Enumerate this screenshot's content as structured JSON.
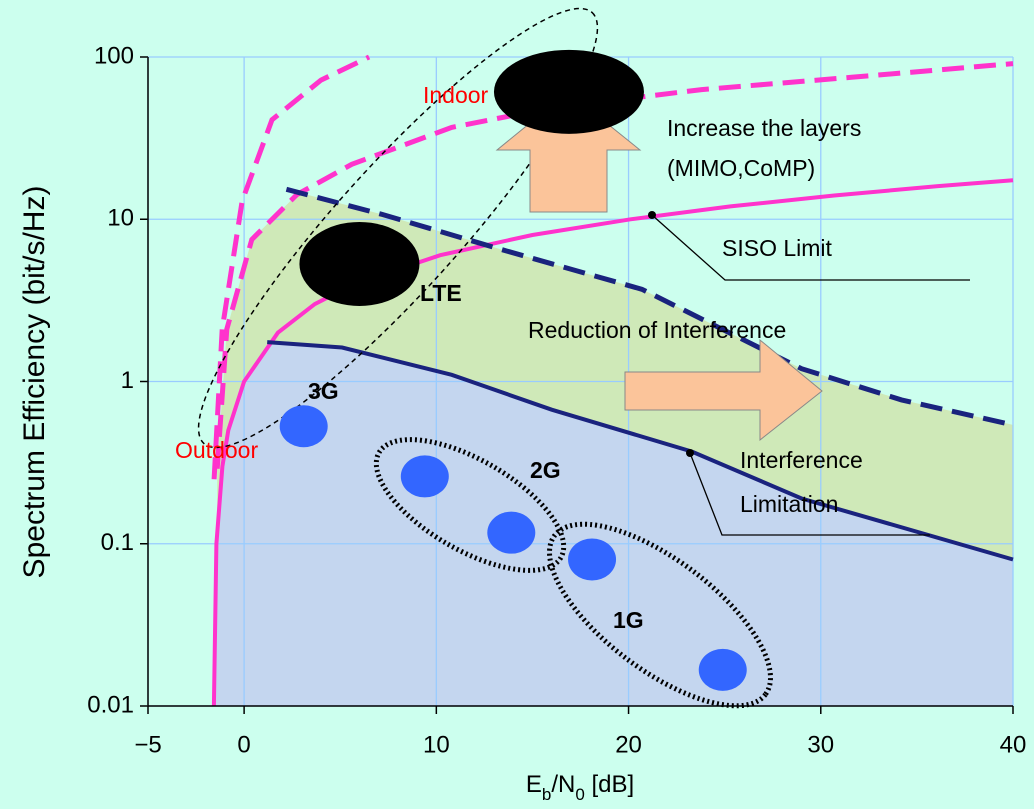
{
  "chart_data": {
    "type": "line",
    "ylabel": "Spectrum Efficiency (bit/s/Hz)",
    "xlabel_parts": [
      "E",
      "b",
      "/N",
      "0",
      " [dB]"
    ],
    "xlim": [
      -5,
      40
    ],
    "ylim": [
      0.01,
      100
    ],
    "log_y": true,
    "grid": true,
    "xticks": [
      {
        "value": -5,
        "label": "−5"
      },
      0,
      10,
      20,
      30,
      40
    ],
    "yticks": [
      0.01,
      0.1,
      1,
      10,
      100
    ],
    "series": [
      {
        "color": "#ff33cc",
        "style": "solid",
        "x": [
          -1.57,
          -1.44,
          -1.13,
          -0.82,
          0,
          1.76,
          3.68,
          5.74,
          10.2,
          15.0,
          20.1,
          25.3,
          30.7,
          36.1,
          40
        ],
        "values": [
          0.01,
          0.1,
          0.3,
          0.5,
          1,
          2,
          3,
          4,
          6,
          8,
          10,
          12,
          14,
          16,
          17.4
        ]
      },
      {
        "color": "#ff33cc",
        "style": "dashed",
        "x": [
          -1.56,
          -1.14,
          -0.1,
          1.45,
          4,
          6.5
        ],
        "values": [
          0.25,
          2.1,
          13,
          41,
          72,
          100
        ]
      },
      {
        "color": "#ff33cc",
        "style": "dashed",
        "x": [
          -1.4,
          -0.9,
          0.4,
          2.75,
          5.6,
          10.8,
          16,
          23.8,
          31.6,
          40
        ],
        "values": [
          0.29,
          2.1,
          7.5,
          14.2,
          21.8,
          36.8,
          48.6,
          63,
          75,
          91
        ]
      },
      {
        "color": "#1a237e",
        "style": "dashed",
        "x": [
          2.2,
          7.2,
          13.4,
          20.7,
          29,
          34.2,
          40
        ],
        "values": [
          15.3,
          10.7,
          6.5,
          3.7,
          1.2,
          0.77,
          0.54
        ]
      },
      {
        "color": "#1a237e",
        "style": "solid",
        "x": [
          1.2,
          5.1,
          10.8,
          16,
          23.3,
          29,
          40
        ],
        "values": [
          1.75,
          1.62,
          1.1,
          0.67,
          0.37,
          0.19,
          0.08
        ]
      }
    ],
    "points": [
      {
        "color": "#3366ff",
        "x": [
          3.1,
          9.4,
          13.9,
          18.1,
          24.9
        ],
        "values": [
          0.53,
          0.26,
          0.117,
          0.08,
          0.0167
        ]
      },
      {
        "color": "#000000",
        "x": [
          6.0,
          16.9
        ],
        "values": [
          5.3,
          61
        ]
      }
    ],
    "annotations": {
      "indoor": "Indoor",
      "outdoor": "Outdoor",
      "lte": "LTE",
      "g3": "3G",
      "g2": "2G",
      "g1": "1G",
      "layers1": "Increase the layers",
      "layers2": "(MIMO,CoMP)",
      "siso": "SISO Limit",
      "reduction": "Reduction of Interference",
      "interf1": "Interference",
      "interf2": "Limitation"
    }
  }
}
